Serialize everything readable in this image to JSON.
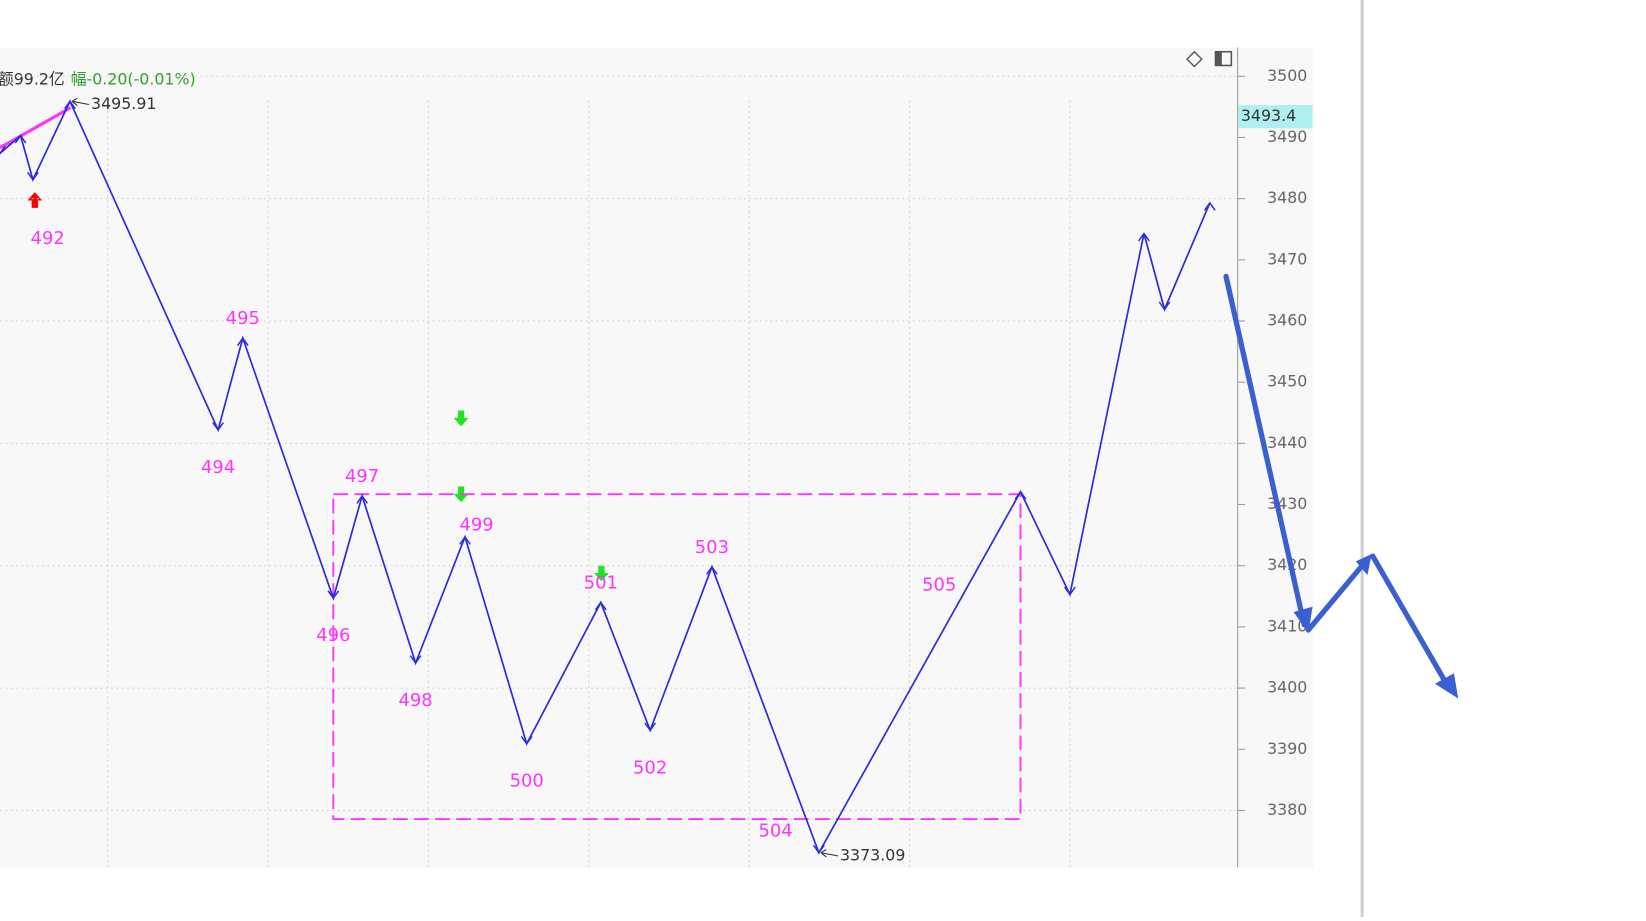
{
  "chart_data": {
    "type": "line",
    "header": {
      "amount": "额99.2亿",
      "change": "幅-0.20(-0.01%)"
    },
    "x": [
      0,
      5,
      8,
      17,
      53,
      59,
      81,
      88,
      101,
      113,
      128,
      146,
      158,
      173,
      199,
      248,
      260,
      278,
      283,
      294
    ],
    "series": [
      {
        "name": "zigzag",
        "color": "#2a2ae0",
        "values": [
          3487.4,
          3490.3,
          3483.1,
          3495.91,
          3442.2,
          3457.2,
          3414.7,
          3431.4,
          3404.1,
          3424.7,
          3390.9,
          3414.0,
          3393.1,
          3419.8,
          3373.09,
          3432.1,
          3415.3,
          3474.3,
          3461.9,
          3479.3
        ]
      }
    ],
    "pivot_labels": [
      null,
      null,
      "492",
      null,
      "494",
      "495",
      "496",
      "497",
      "498",
      "499",
      "500",
      "501",
      "502",
      "503",
      "504",
      "505",
      null,
      null,
      null,
      null
    ],
    "high": 3495.91,
    "low": 3373.09,
    "last_price": 3493.4,
    "range_box": {
      "xlim": [
        81,
        248
      ],
      "ylim": [
        3378.6,
        3431.7
      ],
      "color": "#ff33ff"
    },
    "xlim": [
      0,
      300
    ],
    "ylim": [
      3370.7,
      3504.7
    ],
    "yticks": [
      3380,
      3390,
      3400,
      3410,
      3420,
      3430,
      3440,
      3450,
      3460,
      3470,
      3480,
      3490,
      3500
    ],
    "grid": true
  }
}
